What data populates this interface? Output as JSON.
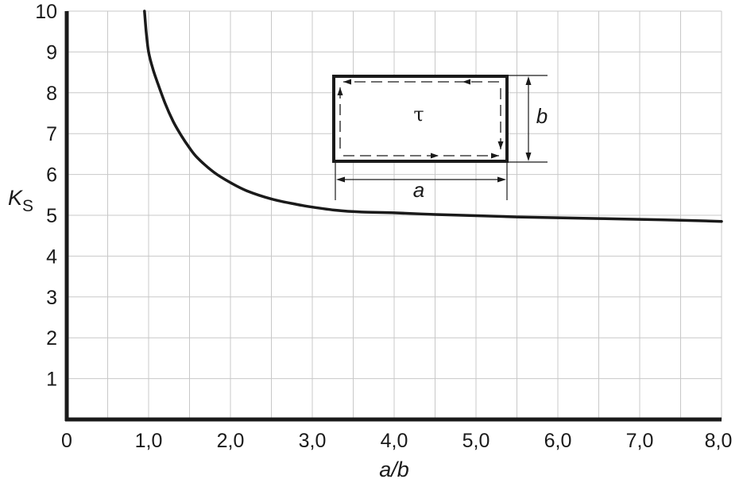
{
  "chart_data": {
    "type": "line",
    "title": "",
    "xlabel": "a/b",
    "ylabel": "K",
    "ylabel_subscript": "S",
    "xlim": [
      0,
      8
    ],
    "ylim": [
      0,
      10
    ],
    "x_ticks": [
      0,
      1,
      2,
      3,
      4,
      5,
      6,
      7,
      8
    ],
    "x_tick_labels": [
      "0",
      "1,0",
      "2,0",
      "3,0",
      "4,0",
      "5,0",
      "6,0",
      "7,0",
      "8,0"
    ],
    "y_ticks": [
      1,
      2,
      3,
      4,
      5,
      6,
      7,
      8,
      9,
      10
    ],
    "y_tick_labels": [
      "1",
      "2",
      "3",
      "4",
      "5",
      "6",
      "7",
      "8",
      "9",
      "10"
    ],
    "grid": true,
    "grid_step_x": 0.5,
    "grid_step_y": 1,
    "series": [
      {
        "x": [
          0.95,
          0.97,
          1.0,
          1.05,
          1.1,
          1.2,
          1.3,
          1.4,
          1.5,
          1.6,
          1.8,
          2.0,
          2.2,
          2.5,
          2.8,
          3.0,
          3.3,
          3.6,
          4.0,
          4.5,
          5.0,
          5.5,
          6.0,
          6.5,
          7.0,
          7.5,
          8.0
        ],
        "y": [
          10.0,
          9.5,
          9.0,
          8.6,
          8.3,
          7.75,
          7.3,
          6.95,
          6.65,
          6.4,
          6.05,
          5.8,
          5.6,
          5.4,
          5.27,
          5.2,
          5.12,
          5.08,
          5.06,
          5.02,
          4.99,
          4.96,
          4.94,
          4.92,
          4.9,
          4.88,
          4.85
        ]
      }
    ],
    "inset": {
      "tau_label": "τ",
      "a_label": "a",
      "b_label": "b"
    },
    "colors": {
      "line": "#1a1a1a",
      "grid": "#c8c8c8",
      "axis": "#1a1a1a"
    }
  }
}
